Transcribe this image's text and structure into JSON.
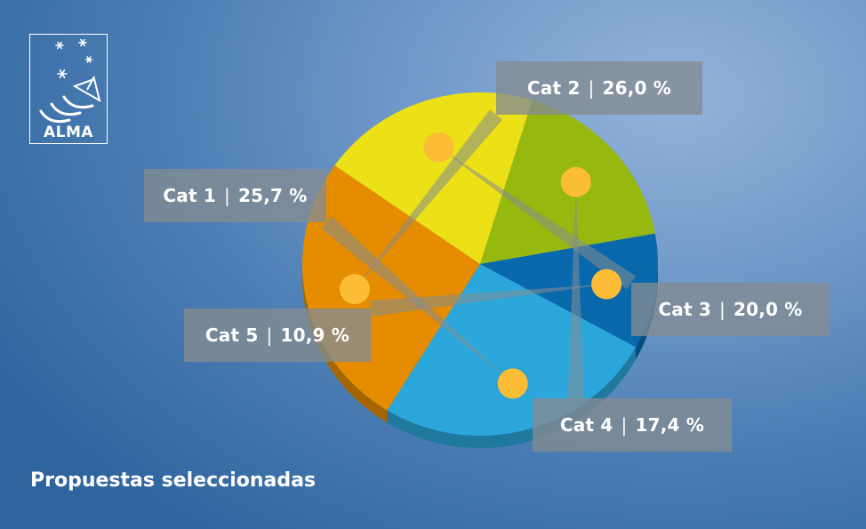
{
  "brand": {
    "name": "ALMA"
  },
  "title": "Propuestas seleccionadas",
  "colors": {
    "Cat 1": "#2ba6da",
    "Cat 2": "#e58c00",
    "Cat 3": "#ece016",
    "Cat 4": "#97b80e",
    "Cat 5": "#0a68ad",
    "marker": "#fbbd35"
  },
  "chart_data": {
    "type": "pie",
    "title": "Propuestas seleccionadas",
    "slices": [
      {
        "name": "Cat 1",
        "value": 25.7,
        "value_label": "25,7 %"
      },
      {
        "name": "Cat 2",
        "value": 26.0,
        "value_label": "26,0 %"
      },
      {
        "name": "Cat 3",
        "value": 20.0,
        "value_label": "20,0 %"
      },
      {
        "name": "Cat 4",
        "value": 17.4,
        "value_label": "17,4 %"
      },
      {
        "name": "Cat 5",
        "value": 10.9,
        "value_label": "10,9 %"
      }
    ]
  }
}
